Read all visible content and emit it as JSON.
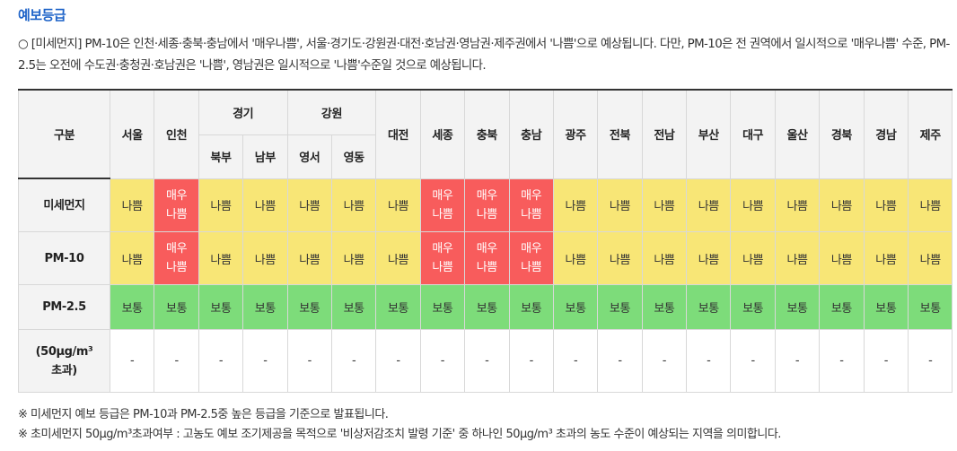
{
  "title": "예보등급",
  "description": "○ [미세먼지] PM-10은 인천·세종·충북·충남에서 '매우나쁨', 서울·경기도·강원권·대전·호남권·영남권·제주권에서 '나쁨'으로 예상됩니다. 다만, PM-10은 전 권역에서 일시적으로 '매우나쁨' 수준, PM-2.5는 오전에 수도권·충청권·호남권은 '나쁨', 영남권은 일시적으로 '나쁨'수준일 것으로 예상됩니다.",
  "table": {
    "corner": "구분",
    "headers": {
      "seoul": "서울",
      "incheon": "인천",
      "gyeonggi": "경기",
      "gyeonggi_north": "북부",
      "gyeonggi_south": "남부",
      "gangwon": "강원",
      "gangwon_west": "영서",
      "gangwon_east": "영동",
      "daejeon": "대전",
      "sejong": "세종",
      "chungbuk": "충북",
      "chungnam": "충남",
      "gwangju": "광주",
      "jeonbuk": "전북",
      "jeonnam": "전남",
      "busan": "부산",
      "daegu": "대구",
      "ulsan": "울산",
      "gyeongbuk": "경북",
      "gyeongnam": "경남",
      "jeju": "제주"
    },
    "rows": [
      {
        "label": "미세먼지",
        "cells": [
          {
            "text": "나쁨",
            "level": "bad"
          },
          {
            "text": "매우\n나쁨",
            "level": "verybad"
          },
          {
            "text": "나쁨",
            "level": "bad"
          },
          {
            "text": "나쁨",
            "level": "bad"
          },
          {
            "text": "나쁨",
            "level": "bad"
          },
          {
            "text": "나쁨",
            "level": "bad"
          },
          {
            "text": "나쁨",
            "level": "bad"
          },
          {
            "text": "매우\n나쁨",
            "level": "verybad"
          },
          {
            "text": "매우\n나쁨",
            "level": "verybad"
          },
          {
            "text": "매우\n나쁨",
            "level": "verybad"
          },
          {
            "text": "나쁨",
            "level": "bad"
          },
          {
            "text": "나쁨",
            "level": "bad"
          },
          {
            "text": "나쁨",
            "level": "bad"
          },
          {
            "text": "나쁨",
            "level": "bad"
          },
          {
            "text": "나쁨",
            "level": "bad"
          },
          {
            "text": "나쁨",
            "level": "bad"
          },
          {
            "text": "나쁨",
            "level": "bad"
          },
          {
            "text": "나쁨",
            "level": "bad"
          },
          {
            "text": "나쁨",
            "level": "bad"
          }
        ]
      },
      {
        "label": "PM-10",
        "cells": [
          {
            "text": "나쁨",
            "level": "bad"
          },
          {
            "text": "매우\n나쁨",
            "level": "verybad"
          },
          {
            "text": "나쁨",
            "level": "bad"
          },
          {
            "text": "나쁨",
            "level": "bad"
          },
          {
            "text": "나쁨",
            "level": "bad"
          },
          {
            "text": "나쁨",
            "level": "bad"
          },
          {
            "text": "나쁨",
            "level": "bad"
          },
          {
            "text": "매우\n나쁨",
            "level": "verybad"
          },
          {
            "text": "매우\n나쁨",
            "level": "verybad"
          },
          {
            "text": "매우\n나쁨",
            "level": "verybad"
          },
          {
            "text": "나쁨",
            "level": "bad"
          },
          {
            "text": "나쁨",
            "level": "bad"
          },
          {
            "text": "나쁨",
            "level": "bad"
          },
          {
            "text": "나쁨",
            "level": "bad"
          },
          {
            "text": "나쁨",
            "level": "bad"
          },
          {
            "text": "나쁨",
            "level": "bad"
          },
          {
            "text": "나쁨",
            "level": "bad"
          },
          {
            "text": "나쁨",
            "level": "bad"
          },
          {
            "text": "나쁨",
            "level": "bad"
          }
        ]
      },
      {
        "label": "PM-2.5",
        "cells": [
          {
            "text": "보통",
            "level": "normal"
          },
          {
            "text": "보통",
            "level": "normal"
          },
          {
            "text": "보통",
            "level": "normal"
          },
          {
            "text": "보통",
            "level": "normal"
          },
          {
            "text": "보통",
            "level": "normal"
          },
          {
            "text": "보통",
            "level": "normal"
          },
          {
            "text": "보통",
            "level": "normal"
          },
          {
            "text": "보통",
            "level": "normal"
          },
          {
            "text": "보통",
            "level": "normal"
          },
          {
            "text": "보통",
            "level": "normal"
          },
          {
            "text": "보통",
            "level": "normal"
          },
          {
            "text": "보통",
            "level": "normal"
          },
          {
            "text": "보통",
            "level": "normal"
          },
          {
            "text": "보통",
            "level": "normal"
          },
          {
            "text": "보통",
            "level": "normal"
          },
          {
            "text": "보통",
            "level": "normal"
          },
          {
            "text": "보통",
            "level": "normal"
          },
          {
            "text": "보통",
            "level": "normal"
          },
          {
            "text": "보통",
            "level": "normal"
          }
        ]
      },
      {
        "label": "(50μg/m³\n초과)",
        "cells": [
          {
            "text": "-",
            "level": "none"
          },
          {
            "text": "-",
            "level": "none"
          },
          {
            "text": "-",
            "level": "none"
          },
          {
            "text": "-",
            "level": "none"
          },
          {
            "text": "-",
            "level": "none"
          },
          {
            "text": "-",
            "level": "none"
          },
          {
            "text": "-",
            "level": "none"
          },
          {
            "text": "-",
            "level": "none"
          },
          {
            "text": "-",
            "level": "none"
          },
          {
            "text": "-",
            "level": "none"
          },
          {
            "text": "-",
            "level": "none"
          },
          {
            "text": "-",
            "level": "none"
          },
          {
            "text": "-",
            "level": "none"
          },
          {
            "text": "-",
            "level": "none"
          },
          {
            "text": "-",
            "level": "none"
          },
          {
            "text": "-",
            "level": "none"
          },
          {
            "text": "-",
            "level": "none"
          },
          {
            "text": "-",
            "level": "none"
          },
          {
            "text": "-",
            "level": "none"
          }
        ]
      }
    ]
  },
  "notes": [
    "※ 미세먼지 예보 등급은 PM-10과 PM-2.5중 높은 등급을 기준으로 발표됩니다.",
    "※ 초미세먼지 50μg/m³초과여부 : 고농도 예보 조기제공을 목적으로 '비상저감조치 발령 기준' 중 하나인 50μg/m³ 초과의 농도 수준이 예상되는 지역을 의미합니다."
  ],
  "colors": {
    "bad": "#f8e676",
    "verybad": "#f85c5c",
    "normal": "#7ddc7a",
    "accent": "#1e63c8"
  }
}
